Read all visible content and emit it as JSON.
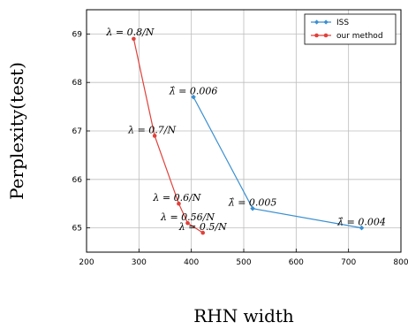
{
  "chart_data": {
    "type": "line",
    "xlabel": "RHN width",
    "ylabel": "Perplexity(test)",
    "xlim": [
      200,
      800
    ],
    "ylim": [
      64.5,
      69.5
    ],
    "xticks": [
      200,
      300,
      400,
      500,
      600,
      700,
      800
    ],
    "yticks": [
      65,
      66,
      67,
      68,
      69
    ],
    "grid": true,
    "legend_position": "top-right",
    "series": [
      {
        "name": "ISS",
        "color": "#3a8fd0",
        "marker": "diamond",
        "points": [
          {
            "x": 404,
            "y": 67.7,
            "label": "λ̂ = 0.006"
          },
          {
            "x": 517,
            "y": 65.4,
            "label": "λ̂ = 0.005"
          },
          {
            "x": 725,
            "y": 65.0,
            "label": "λ̂ = 0.004"
          }
        ]
      },
      {
        "name": "our method",
        "color": "#e0413a",
        "marker": "circle",
        "points": [
          {
            "x": 290,
            "y": 68.9,
            "label": "λ = 0.8/N"
          },
          {
            "x": 330,
            "y": 66.9,
            "label": "λ = 0.7/N"
          },
          {
            "x": 376,
            "y": 65.5,
            "label": "λ = 0.6/N"
          },
          {
            "x": 393,
            "y": 65.1,
            "label": "λ = 0.56/N"
          },
          {
            "x": 422,
            "y": 64.9,
            "label": "λ = 0.5/N"
          }
        ]
      }
    ]
  }
}
